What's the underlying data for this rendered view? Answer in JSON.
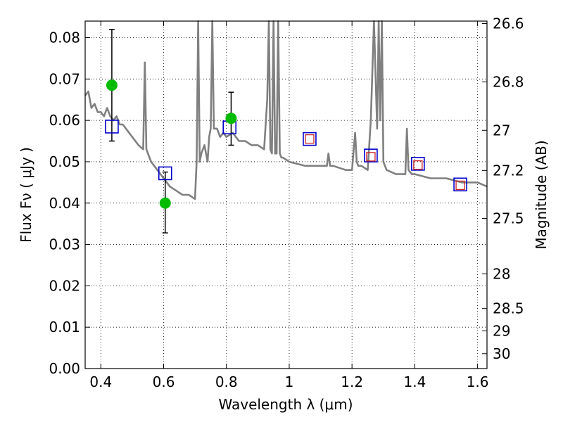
{
  "chart_data": {
    "type": "scatter",
    "xlabel": "Wavelength  λ (μm)",
    "ylabel": "Flux  Fν  ( μJy )",
    "y2label": "Magnitude (AB)",
    "xlim": [
      0.35,
      1.63
    ],
    "ylim": [
      0.0,
      0.084
    ],
    "grid": true,
    "x_ticks": [
      0.4,
      0.6,
      0.8,
      1.0,
      1.2,
      1.4,
      1.6
    ],
    "x_tick_labels": [
      "0.4",
      "0.6",
      "0.8",
      "1",
      "1.2",
      "1.4",
      "1.6"
    ],
    "y_ticks": [
      0.0,
      0.01,
      0.02,
      0.03,
      0.04,
      0.05,
      0.06,
      0.07,
      0.08
    ],
    "y_tick_labels": [
      "0.00",
      "0.01",
      "0.02",
      "0.03",
      "0.04",
      "0.05",
      "0.06",
      "0.07",
      "0.08"
    ],
    "y2_ticks": [
      {
        "label": "26.6",
        "flux": 0.0834
      },
      {
        "label": "26.8",
        "flux": 0.0693
      },
      {
        "label": "27",
        "flux": 0.0576
      },
      {
        "label": "27.2",
        "flux": 0.0479
      },
      {
        "label": "27.5",
        "flux": 0.0363
      },
      {
        "label": "28",
        "flux": 0.0229
      },
      {
        "label": "28.5",
        "flux": 0.0145
      },
      {
        "label": "29",
        "flux": 0.0091
      },
      {
        "label": "30",
        "flux": 0.0036
      }
    ],
    "series": [
      {
        "kind": "spectrum",
        "color": "#808080",
        "x": [
          0.35,
          0.36,
          0.37,
          0.38,
          0.39,
          0.4,
          0.41,
          0.42,
          0.43,
          0.44,
          0.45,
          0.46,
          0.47,
          0.48,
          0.5,
          0.52,
          0.535,
          0.54,
          0.545,
          0.55,
          0.56,
          0.58,
          0.6,
          0.62,
          0.64,
          0.66,
          0.68,
          0.7,
          0.705,
          0.71,
          0.715,
          0.72,
          0.73,
          0.74,
          0.745,
          0.75,
          0.755,
          0.76,
          0.77,
          0.78,
          0.79,
          0.8,
          0.82,
          0.84,
          0.86,
          0.88,
          0.9,
          0.92,
          0.93,
          0.935,
          0.94,
          0.945,
          0.95,
          0.955,
          0.96,
          0.965,
          0.97,
          0.975,
          0.98,
          1.0,
          1.05,
          1.1,
          1.12,
          1.125,
          1.13,
          1.135,
          1.14,
          1.18,
          1.2,
          1.21,
          1.215,
          1.22,
          1.23,
          1.25,
          1.26,
          1.27,
          1.28,
          1.285,
          1.29,
          1.295,
          1.3,
          1.31,
          1.34,
          1.36,
          1.37,
          1.375,
          1.38,
          1.39,
          1.4,
          1.45,
          1.5,
          1.55,
          1.6,
          1.63
        ],
        "y": [
          0.066,
          0.067,
          0.063,
          0.064,
          0.062,
          0.062,
          0.061,
          0.063,
          0.061,
          0.06,
          0.061,
          0.059,
          0.059,
          0.058,
          0.056,
          0.054,
          0.053,
          0.074,
          0.053,
          0.052,
          0.05,
          0.048,
          0.046,
          0.044,
          0.043,
          0.042,
          0.042,
          0.041,
          0.05,
          0.084,
          0.05,
          0.052,
          0.054,
          0.05,
          0.056,
          0.058,
          0.084,
          0.058,
          0.058,
          0.056,
          0.057,
          0.056,
          0.057,
          0.055,
          0.055,
          0.054,
          0.054,
          0.053,
          0.065,
          0.084,
          0.053,
          0.052,
          0.084,
          0.052,
          0.052,
          0.084,
          0.052,
          0.051,
          0.051,
          0.05,
          0.049,
          0.049,
          0.049,
          0.052,
          0.049,
          0.049,
          0.049,
          0.048,
          0.048,
          0.057,
          0.05,
          0.049,
          0.049,
          0.048,
          0.06,
          0.084,
          0.058,
          0.084,
          0.06,
          0.084,
          0.05,
          0.048,
          0.047,
          0.047,
          0.047,
          0.058,
          0.048,
          0.047,
          0.047,
          0.046,
          0.046,
          0.045,
          0.045,
          0.044
        ]
      },
      {
        "kind": "measured",
        "marker": "circle",
        "color": "#00bb00",
        "x": [
          0.435,
          0.605,
          0.815
        ],
        "y": [
          0.0685,
          0.04,
          0.0605
        ],
        "yerr_low": [
          0.055,
          0.0328,
          0.054
        ],
        "yerr_high": [
          0.082,
          0.0475,
          0.0668
        ]
      },
      {
        "kind": "model_blue",
        "marker": "open-square",
        "color": "#0000cc",
        "x": [
          0.435,
          0.605,
          0.81,
          1.065,
          1.26,
          1.41,
          1.545
        ],
        "y": [
          0.0585,
          0.0472,
          0.0583,
          0.0555,
          0.0515,
          0.0495,
          0.0445
        ]
      },
      {
        "kind": "model_red",
        "marker": "open-square",
        "color": "#cc2222",
        "x": [
          1.065,
          1.26,
          1.41,
          1.545
        ],
        "y": [
          0.0555,
          0.0512,
          0.0492,
          0.0443
        ]
      }
    ]
  }
}
